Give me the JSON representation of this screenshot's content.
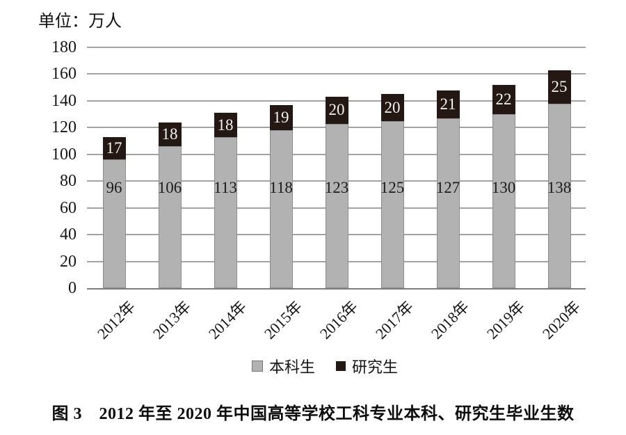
{
  "chart": {
    "unit_label": "单位：万人"
  },
  "chart_data": {
    "type": "bar",
    "stacked": true,
    "title": "",
    "xlabel": "",
    "ylabel": "单位：万人",
    "ylim": [
      0,
      180
    ],
    "ytick_step": 20,
    "grid": true,
    "legend_position": "bottom",
    "categories": [
      "2012年",
      "2013年",
      "2014年",
      "2015年",
      "2016年",
      "2017年",
      "2018年",
      "2019年",
      "2020年"
    ],
    "series": [
      {
        "name": "本科生",
        "color": "#b2b2b2",
        "values": [
          96,
          106,
          113,
          118,
          123,
          125,
          127,
          130,
          138
        ]
      },
      {
        "name": "研究生",
        "color": "#241815",
        "values": [
          17,
          18,
          18,
          19,
          20,
          20,
          21,
          22,
          25
        ]
      }
    ]
  },
  "legend": {
    "undergrad_label": "本科生",
    "grad_label": "研究生"
  },
  "caption": "图 3　2012 年至 2020 年中国高等学校工科专业本科、研究生毕业生数",
  "colors": {
    "undergrad_bar": "#b2b2b2",
    "grad_bar": "#241815",
    "gridline": "#a3a3a3",
    "axis_line": "#7d7d7d"
  }
}
